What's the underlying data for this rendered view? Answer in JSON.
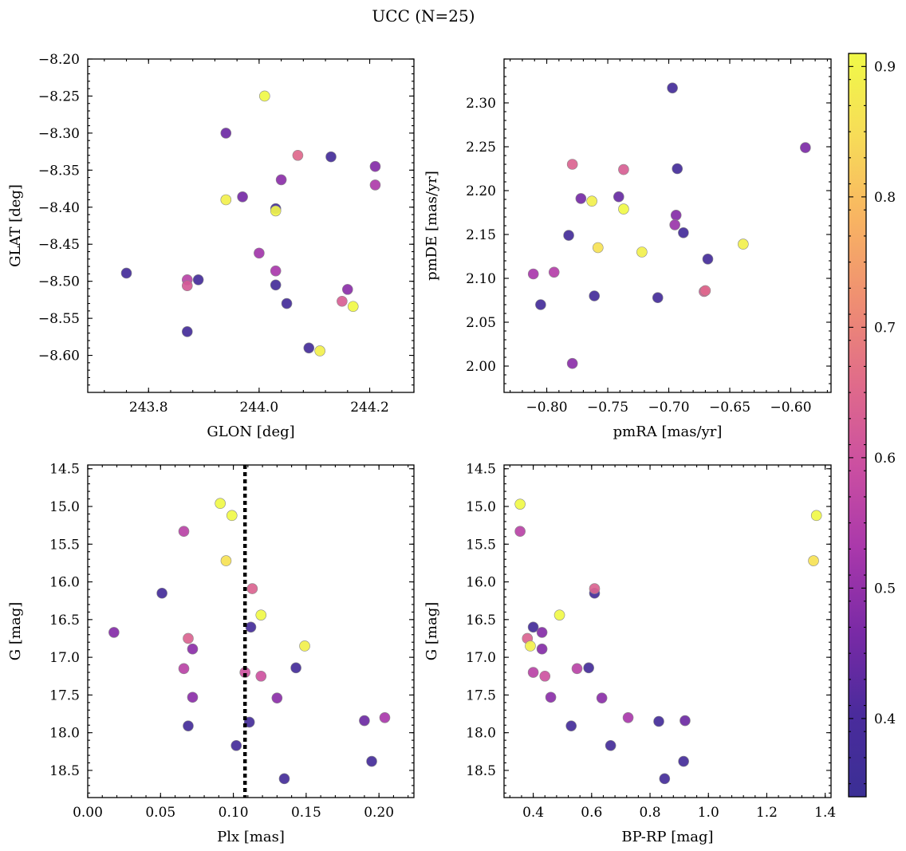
{
  "figure": {
    "title": "UCC (N=25)",
    "colormap": "plasma",
    "colormap_stops": [
      "#3b2f95",
      "#4a2b9c",
      "#7a2aa6",
      "#a938ab",
      "#cb4fa1",
      "#e06b8a",
      "#ef8e72",
      "#f8b462",
      "#f7dc58",
      "#f0f948"
    ],
    "colorbar": {
      "min": 0.34,
      "max": 0.91,
      "ticks": [
        "0.4",
        "0.5",
        "0.6",
        "0.7",
        "0.8",
        "0.9"
      ]
    }
  },
  "chart_data": [
    {
      "type": "scatter",
      "title": "",
      "xlabel": "GLON [deg]",
      "ylabel": "GLAT [deg]",
      "xlim": [
        243.69,
        244.28
      ],
      "ylim": [
        -8.65,
        -8.2
      ],
      "y_inverted": false,
      "x_ticks": [
        "243.8",
        "244.0",
        "244.2"
      ],
      "y_ticks": [
        "-8.20",
        "-8.25",
        "-8.30",
        "-8.35",
        "-8.40",
        "-8.45",
        "-8.50",
        "-8.55",
        "-8.60"
      ],
      "x": [
        244.01,
        243.94,
        244.07,
        244.13,
        244.21,
        244.04,
        244.21,
        243.94,
        243.97,
        244.03,
        244.03,
        244.0,
        244.03,
        243.76,
        243.87,
        243.89,
        243.87,
        244.03,
        244.16,
        244.05,
        244.15,
        244.17,
        243.87,
        244.09,
        244.11
      ],
      "y": [
        -8.25,
        -8.3,
        -8.33,
        -8.332,
        -8.345,
        -8.363,
        -8.37,
        -8.39,
        -8.386,
        -8.402,
        -8.405,
        -8.462,
        -8.486,
        -8.489,
        -8.498,
        -8.498,
        -8.506,
        -8.505,
        -8.511,
        -8.53,
        -8.527,
        -8.534,
        -8.568,
        -8.59,
        -8.594
      ],
      "color": [
        0.91,
        0.45,
        0.65,
        0.38,
        0.48,
        0.49,
        0.54,
        0.89,
        0.46,
        0.37,
        0.9,
        0.52,
        0.53,
        0.38,
        0.56,
        0.38,
        0.62,
        0.38,
        0.49,
        0.38,
        0.63,
        0.91,
        0.38,
        0.38,
        0.89
      ],
      "hline": null,
      "vline": null
    },
    {
      "type": "scatter",
      "title": "",
      "xlabel": "pmRA [mas/yr]",
      "ylabel": "pmDE [mas/yr]",
      "xlim": [
        -0.835,
        -0.567
      ],
      "ylim": [
        1.97,
        2.35
      ],
      "y_inverted": false,
      "x_ticks": [
        "-0.80",
        "-0.75",
        "-0.70",
        "-0.65",
        "-0.60"
      ],
      "y_ticks": [
        "2.00",
        "2.05",
        "2.10",
        "2.15",
        "2.20",
        "2.25",
        "2.30"
      ],
      "x": [
        -0.697,
        -0.588,
        -0.779,
        -0.737,
        -0.693,
        -0.772,
        -0.741,
        -0.763,
        -0.737,
        -0.694,
        -0.695,
        -0.758,
        -0.639,
        -0.782,
        -0.688,
        -0.722,
        -0.668,
        -0.794,
        -0.811,
        -0.671,
        -0.67,
        -0.761,
        -0.805,
        -0.709,
        -0.779
      ],
      "y": [
        2.317,
        2.249,
        2.23,
        2.224,
        2.225,
        2.191,
        2.193,
        2.188,
        2.179,
        2.172,
        2.161,
        2.135,
        2.139,
        2.149,
        2.152,
        2.13,
        2.122,
        2.107,
        2.105,
        2.085,
        2.086,
        2.08,
        2.07,
        2.078,
        2.003
      ],
      "color": [
        0.38,
        0.47,
        0.64,
        0.63,
        0.38,
        0.46,
        0.44,
        0.89,
        0.91,
        0.48,
        0.51,
        0.86,
        0.89,
        0.38,
        0.38,
        0.89,
        0.38,
        0.55,
        0.53,
        0.62,
        0.65,
        0.38,
        0.38,
        0.38,
        0.49
      ],
      "hline": null,
      "vline": null
    },
    {
      "type": "scatter",
      "title": "",
      "xlabel": "Plx [mas]",
      "ylabel": "G [mag]",
      "xlim": [
        0.0,
        0.224
      ],
      "ylim": [
        18.86,
        14.45
      ],
      "y_inverted": true,
      "x_ticks": [
        "0.00",
        "0.05",
        "0.10",
        "0.15",
        "0.20"
      ],
      "y_ticks": [
        "14.5",
        "15.0",
        "15.5",
        "16.0",
        "16.5",
        "17.0",
        "17.5",
        "18.0",
        "18.5"
      ],
      "x": [
        0.091,
        0.099,
        0.066,
        0.095,
        0.051,
        0.113,
        0.119,
        0.018,
        0.112,
        0.069,
        0.149,
        0.072,
        0.066,
        0.108,
        0.119,
        0.143,
        0.072,
        0.13,
        0.069,
        0.111,
        0.19,
        0.204,
        0.102,
        0.195,
        0.135
      ],
      "y": [
        14.96,
        15.12,
        15.33,
        15.72,
        16.15,
        16.09,
        16.44,
        16.67,
        16.6,
        16.75,
        16.85,
        16.89,
        17.15,
        17.2,
        17.25,
        17.14,
        17.53,
        17.54,
        17.91,
        17.86,
        17.84,
        17.8,
        18.17,
        18.38,
        18.61
      ],
      "color": [
        0.91,
        0.91,
        0.56,
        0.86,
        0.38,
        0.64,
        0.91,
        0.48,
        0.38,
        0.64,
        0.89,
        0.49,
        0.56,
        0.6,
        0.6,
        0.38,
        0.49,
        0.49,
        0.38,
        0.38,
        0.45,
        0.53,
        0.38,
        0.38,
        0.38
      ],
      "hline": null,
      "vline": 0.108
    },
    {
      "type": "scatter",
      "title": "",
      "xlabel": "BP-RP [mag]",
      "ylabel": "G [mag]",
      "xlim": [
        0.3,
        1.42
      ],
      "ylim": [
        18.86,
        14.45
      ],
      "y_inverted": true,
      "x_ticks": [
        "0.4",
        "0.6",
        "0.8",
        "1.0",
        "1.2",
        "1.4"
      ],
      "y_ticks": [
        "14.5",
        "15.0",
        "15.5",
        "16.0",
        "16.5",
        "17.0",
        "17.5",
        "18.0",
        "18.5"
      ],
      "x": [
        0.355,
        0.355,
        1.37,
        1.36,
        0.61,
        0.61,
        0.49,
        0.4,
        0.43,
        0.38,
        0.39,
        0.43,
        0.4,
        0.55,
        0.59,
        0.44,
        0.46,
        0.635,
        0.725,
        0.53,
        0.83,
        0.92,
        0.665,
        0.915,
        0.85
      ],
      "y": [
        14.97,
        15.33,
        15.12,
        15.72,
        16.15,
        16.09,
        16.44,
        16.6,
        16.67,
        16.75,
        16.85,
        16.89,
        17.2,
        17.15,
        17.14,
        17.25,
        17.53,
        17.54,
        17.8,
        17.91,
        17.85,
        17.84,
        18.17,
        18.38,
        18.61
      ],
      "color": [
        0.91,
        0.56,
        0.91,
        0.86,
        0.38,
        0.64,
        0.91,
        0.38,
        0.48,
        0.64,
        0.89,
        0.48,
        0.56,
        0.56,
        0.38,
        0.6,
        0.49,
        0.49,
        0.53,
        0.38,
        0.38,
        0.45,
        0.38,
        0.38,
        0.38
      ],
      "hline": null,
      "vline": null
    }
  ]
}
